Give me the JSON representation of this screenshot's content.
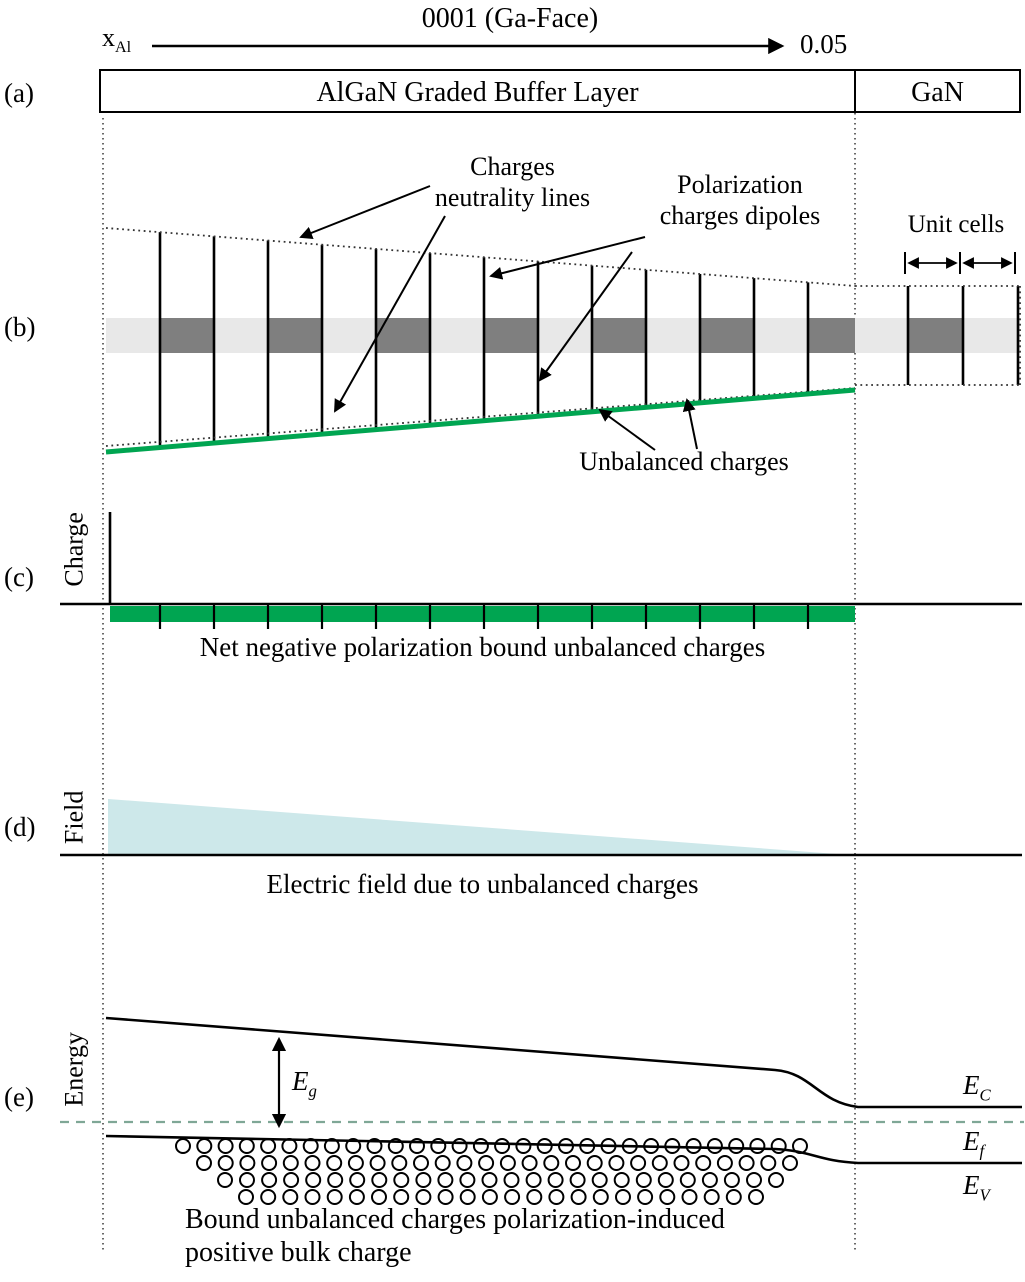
{
  "colors": {
    "green": "#00A551",
    "field_fill": "#CDE8EA",
    "band_light": "#E8E8E8",
    "band_dark": "#7F7F7F",
    "fermi_dash": "#7FA796"
  },
  "header": {
    "orientation_title": "0001 (Ga-Face)",
    "x_label_main": "x",
    "x_label_sub": "Al",
    "x_end_value": "0.05",
    "layer_left": "AlGaN Graded Buffer Layer",
    "layer_right": "GaN"
  },
  "panels": {
    "a_label": "(a)",
    "b_label": "(b)",
    "c_label": "(c)",
    "d_label": "(d)",
    "e_label": "(e)"
  },
  "panel_b": {
    "charges_neutrality_label": "Charges\nneutrality lines",
    "polarization_dipoles_label": "Polarization\ncharges dipoles",
    "unit_cells_label": "Unit cells",
    "unbalanced_charges_label": "Unbalanced charges"
  },
  "panel_c": {
    "axis_label": "Charge",
    "caption": "Net negative polarization bound unbalanced charges"
  },
  "panel_d": {
    "axis_label": "Field",
    "caption": "Electric field due to unbalanced charges"
  },
  "panel_e": {
    "axis_label": "Energy",
    "band_gap_main": "E",
    "band_gap_sub": "g",
    "conduction_main": "E",
    "conduction_sub": "C",
    "fermi_main": "E",
    "fermi_sub": "f",
    "valence_main": "E",
    "valence_sub": "V",
    "caption": "Bound unbalanced charges polarization-induced\npositive bulk charge"
  }
}
